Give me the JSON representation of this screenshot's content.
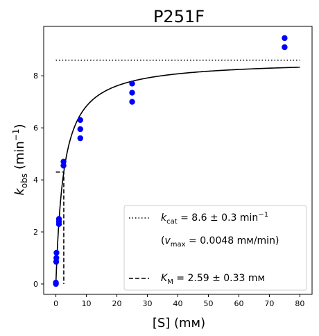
{
  "chart_data": {
    "type": "scatter",
    "title": "P251F",
    "xlabel": "[S] (mм)",
    "ylabel": "k_obs (min⁻¹)",
    "xlim": [
      -4,
      84
    ],
    "ylim": [
      -0.4,
      9.9
    ],
    "xticks": [
      0,
      10,
      20,
      30,
      40,
      50,
      60,
      70,
      80
    ],
    "yticks": [
      0,
      2,
      4,
      6,
      8
    ],
    "grid": false,
    "legend_position": "lower-right",
    "points": [
      {
        "x": 0,
        "y": 0.0
      },
      {
        "x": 0,
        "y": 0.05
      },
      {
        "x": 0.1,
        "y": 0.85
      },
      {
        "x": 0.15,
        "y": 1.0
      },
      {
        "x": 0.2,
        "y": 1.2
      },
      {
        "x": 1,
        "y": 2.3
      },
      {
        "x": 1,
        "y": 2.4
      },
      {
        "x": 1,
        "y": 2.5
      },
      {
        "x": 2.5,
        "y": 4.55
      },
      {
        "x": 2.5,
        "y": 4.7
      },
      {
        "x": 8,
        "y": 5.6
      },
      {
        "x": 8,
        "y": 5.95
      },
      {
        "x": 8,
        "y": 6.3
      },
      {
        "x": 25,
        "y": 7.0
      },
      {
        "x": 25,
        "y": 7.35
      },
      {
        "x": 25,
        "y": 7.7
      },
      {
        "x": 75,
        "y": 9.1
      },
      {
        "x": 75,
        "y": 9.45
      }
    ],
    "fit": {
      "model": "michaelis-menten",
      "kcat": 8.6,
      "KM": 2.59,
      "x_range": [
        0,
        80
      ]
    },
    "kcat_line": {
      "y": 8.6,
      "x_range": [
        0,
        80
      ]
    },
    "km_line": {
      "x": 2.59,
      "y_half": 4.3
    },
    "legend": [
      {
        "style": "dotted",
        "parts": [
          [
            "k",
            "n"
          ],
          [
            "cat",
            "sub"
          ],
          [
            " = 8.6 ± 0.3 min",
            "n"
          ],
          [
            "−1",
            "sup"
          ]
        ]
      },
      {
        "style": "none",
        "parts": [
          [
            "(",
            "n"
          ],
          [
            "v",
            "i"
          ],
          [
            "max",
            "sub"
          ],
          [
            " = 0.0048 mм/min)",
            "n"
          ]
        ]
      },
      {
        "style": "dashed",
        "parts": [
          [
            "K",
            "i"
          ],
          [
            "M",
            "sub"
          ],
          [
            " = 2.59 ± 0.33 mм",
            "n"
          ]
        ]
      }
    ],
    "colors": {
      "points": "#0000ff",
      "lines": "#000000"
    }
  }
}
